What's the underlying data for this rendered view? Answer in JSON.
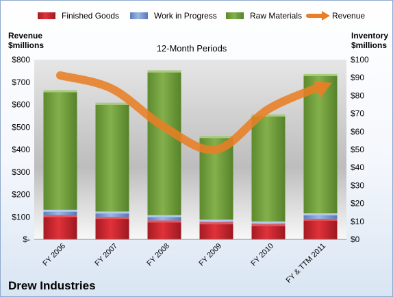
{
  "chart_data": {
    "type": "bar",
    "stacked": true,
    "title": "12-Month Periods",
    "company": "Drew Industries",
    "ylabel_left": [
      "Revenue",
      "$millions"
    ],
    "ylabel_right": [
      "Inventory",
      "$millions"
    ],
    "categories": [
      "FY 2006",
      "FY 2007",
      "FY 2008",
      "FY 2009",
      "FY 2010",
      "FY & TTM 2011"
    ],
    "ylim_left": [
      0,
      800
    ],
    "ylim_right": [
      0,
      100
    ],
    "yticks_left": [
      "$-",
      "$100",
      "$200",
      "$300",
      "$400",
      "$500",
      "$600",
      "$700",
      "$800"
    ],
    "yticks_right": [
      "$0",
      "$10",
      "$20",
      "$30",
      "$40",
      "$50",
      "$60",
      "$70",
      "$80",
      "$90",
      "$100"
    ],
    "series": [
      {
        "name": "Finished Goods",
        "axis": "right",
        "color": "#c0232c",
        "values": [
          13.5,
          12.5,
          10.5,
          9.5,
          8.5,
          11.5
        ]
      },
      {
        "name": "Work in Progress",
        "axis": "right",
        "color": "#6f93cf",
        "values": [
          3.0,
          3.0,
          3.0,
          1.5,
          1.5,
          3.0
        ]
      },
      {
        "name": "Raw Materials",
        "axis": "right",
        "color": "#6d9a3a",
        "values": [
          66.5,
          60.5,
          80.5,
          46.5,
          59.5,
          77.5
        ]
      },
      {
        "name": "Revenue",
        "axis": "left",
        "type": "line",
        "color": "#ee8a3a",
        "values": [
          730,
          670,
          500,
          400,
          580,
          680
        ]
      }
    ],
    "legend_position": "top",
    "grid": false
  }
}
